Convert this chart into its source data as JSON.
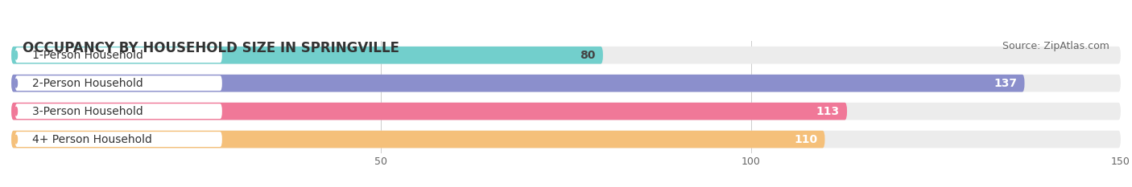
{
  "title": "OCCUPANCY BY HOUSEHOLD SIZE IN SPRINGVILLE",
  "source": "Source: ZipAtlas.com",
  "categories": [
    "1-Person Household",
    "2-Person Household",
    "3-Person Household",
    "4+ Person Household"
  ],
  "values": [
    80,
    137,
    113,
    110
  ],
  "bar_colors": [
    "#72CFCC",
    "#8B8FCC",
    "#F07898",
    "#F5C07A"
  ],
  "label_colors": [
    "#444444",
    "#ffffff",
    "#ffffff",
    "#ffffff"
  ],
  "xlim_min": 0,
  "xlim_max": 150,
  "xticks": [
    50,
    100,
    150
  ],
  "background_color": "#ffffff",
  "bar_background_color": "#ececec",
  "title_fontsize": 12,
  "source_fontsize": 9,
  "bar_height": 0.62,
  "label_fontsize": 10,
  "cat_fontsize": 10
}
